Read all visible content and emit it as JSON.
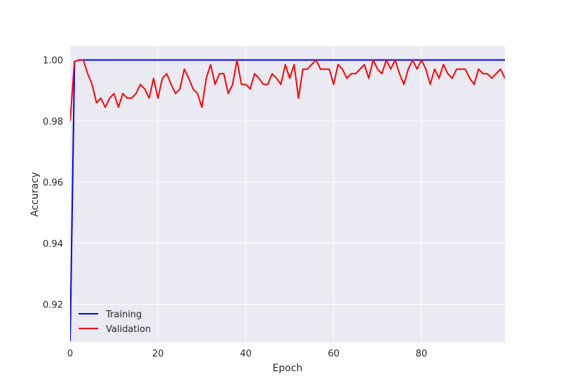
{
  "chart_data": {
    "type": "line",
    "title": "",
    "xlabel": "Epoch",
    "ylabel": "Accuracy",
    "xlim": [
      0,
      99
    ],
    "ylim": [
      0.9075,
      1.0045
    ],
    "xticks": [
      0,
      20,
      40,
      60,
      80
    ],
    "yticks": [
      0.92,
      0.94,
      0.96,
      0.98,
      1.0
    ],
    "ytick_labels": [
      "0.92",
      "0.94",
      "0.96",
      "0.98",
      "1.00"
    ],
    "grid": true,
    "legend": "lower-left",
    "colors": {
      "background": "#EAEAF2",
      "grid": "#FFFFFF",
      "training": "#0000FF",
      "validation": "#FF0000"
    },
    "series": [
      {
        "name": "Training",
        "color": "#0000FF",
        "values": [
          0.908,
          0.9995,
          1.0,
          1.0,
          1.0,
          1.0,
          1.0,
          1.0,
          1.0,
          1.0,
          1.0,
          1.0,
          1.0,
          1.0,
          1.0,
          1.0,
          1.0,
          1.0,
          1.0,
          1.0,
          1.0,
          1.0,
          1.0,
          1.0,
          1.0,
          1.0,
          1.0,
          1.0,
          1.0,
          1.0,
          1.0,
          1.0,
          1.0,
          1.0,
          1.0,
          1.0,
          1.0,
          1.0,
          1.0,
          1.0,
          1.0,
          1.0,
          1.0,
          1.0,
          1.0,
          1.0,
          1.0,
          1.0,
          1.0,
          1.0,
          1.0,
          1.0,
          1.0,
          1.0,
          1.0,
          1.0,
          1.0,
          1.0,
          1.0,
          1.0,
          1.0,
          1.0,
          1.0,
          1.0,
          1.0,
          1.0,
          1.0,
          1.0,
          1.0,
          1.0,
          1.0,
          1.0,
          1.0,
          1.0,
          1.0,
          1.0,
          1.0,
          1.0,
          1.0,
          1.0,
          1.0,
          1.0,
          1.0,
          1.0,
          1.0,
          1.0,
          1.0,
          1.0,
          1.0,
          1.0,
          1.0,
          1.0,
          1.0,
          1.0,
          1.0,
          1.0,
          1.0,
          1.0,
          1.0,
          1.0
        ]
      },
      {
        "name": "Validation",
        "color": "#FF0000",
        "values": [
          0.98,
          0.9995,
          1.0,
          1.0,
          0.9955,
          0.992,
          0.986,
          0.9875,
          0.9845,
          0.9875,
          0.989,
          0.9845,
          0.989,
          0.9875,
          0.9875,
          0.989,
          0.992,
          0.9905,
          0.9875,
          0.994,
          0.9875,
          0.994,
          0.9955,
          0.992,
          0.989,
          0.9905,
          0.997,
          0.994,
          0.9905,
          0.989,
          0.9845,
          0.994,
          0.9985,
          0.992,
          0.9955,
          0.9955,
          0.989,
          0.992,
          1.0,
          0.992,
          0.992,
          0.9905,
          0.9955,
          0.994,
          0.992,
          0.992,
          0.9955,
          0.994,
          0.992,
          0.9985,
          0.994,
          0.9985,
          0.9875,
          0.997,
          0.997,
          0.9985,
          1.0,
          0.997,
          0.997,
          0.997,
          0.992,
          0.9985,
          0.997,
          0.994,
          0.9955,
          0.9955,
          0.997,
          0.9985,
          0.994,
          1.0,
          0.997,
          0.9955,
          1.0,
          0.997,
          1.0,
          0.9955,
          0.992,
          0.997,
          1.0,
          0.997,
          1.0,
          0.997,
          0.992,
          0.997,
          0.994,
          0.9985,
          0.9955,
          0.994,
          0.997,
          0.997,
          0.997,
          0.994,
          0.992,
          0.997,
          0.9955,
          0.9955,
          0.994,
          0.9955,
          0.997,
          0.994
        ]
      }
    ]
  }
}
